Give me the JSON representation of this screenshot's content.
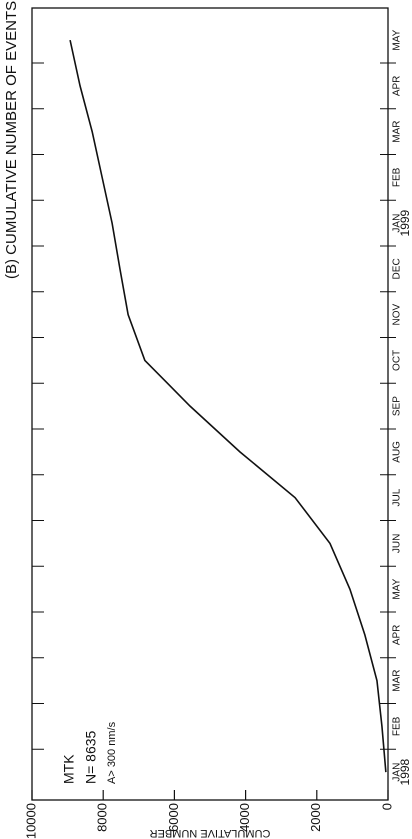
{
  "chart_data": {
    "type": "line",
    "title": "(B) CUMULATIVE NUMBER OF EVENTS",
    "y_label": "CUMULATIVE NUMBER",
    "categories": [
      "JAN",
      "FEB",
      "MAR",
      "APR",
      "MAY",
      "JUN",
      "JUL",
      "AUG",
      "SEP",
      "OCT",
      "NOV",
      "DEC",
      "JAN",
      "FEB",
      "MAR",
      "APR",
      "MAY"
    ],
    "year_labels": [
      {
        "index": 0,
        "label": "1998"
      },
      {
        "index": 12,
        "label": "1999"
      }
    ],
    "annotations": [
      "MTK",
      "N= 8635",
      "A> 300 nm/s"
    ],
    "series": [
      {
        "name": "MTK",
        "color": "#111111",
        "values": [
          60,
          170,
          310,
          650,
          1070,
          1630,
          2610,
          4160,
          5560,
          6830,
          7300,
          7530,
          7750,
          8030,
          8310,
          8650,
          8930
        ]
      }
    ],
    "ylim": [
      0,
      10000
    ],
    "yticks": [
      0,
      2000,
      4000,
      6000,
      8000,
      10000
    ]
  }
}
